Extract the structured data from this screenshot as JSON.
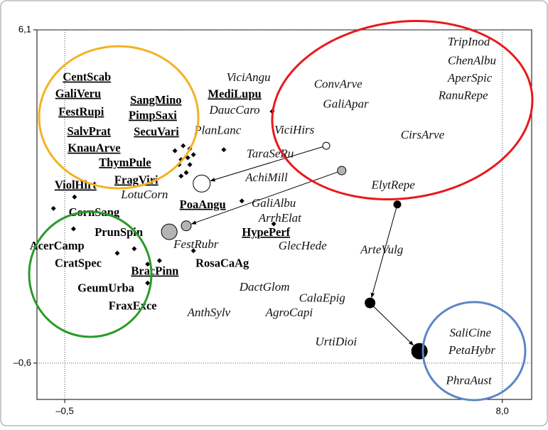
{
  "chart_data": {
    "type": "scatter",
    "xlim": [
      -1.04,
      8.57
    ],
    "ylim": [
      -1.33,
      6.1
    ],
    "xticks": [
      {
        "value": -0.5,
        "label": "–0,5"
      },
      {
        "value": 8.0,
        "label": "8,0"
      }
    ],
    "yticks": [
      {
        "value": -0.6,
        "label": "–0,6"
      },
      {
        "value": 6.1,
        "label": "6,1"
      }
    ],
    "point_color": "#000000",
    "points": {
      "x": [
        1.64,
        1.8,
        1.93,
        2.0,
        1.89,
        1.76,
        1.72,
        1.93,
        1.86,
        1.76,
        2.59,
        3.53,
        -0.31,
        -0.72,
        -0.33,
        0.85,
        0.52,
        1.11,
        1.34,
        1.11,
        2.0,
        2.94,
        3.56
      ],
      "y": [
        3.67,
        3.77,
        3.71,
        3.59,
        3.53,
        3.49,
        3.39,
        3.39,
        3.23,
        3.16,
        3.69,
        4.46,
        2.74,
        2.51,
        2.1,
        1.7,
        1.61,
        1.39,
        1.46,
        1.01,
        1.66,
        2.66,
        2.2
      ]
    },
    "sites": {
      "x": [
        2.16,
        4.58,
        4.88,
        1.86,
        1.53,
        5.96,
        5.43,
        6.39
      ],
      "y": [
        3.01,
        3.77,
        3.27,
        2.16,
        2.04,
        2.59,
        0.61,
        -0.36
      ],
      "sizes": [
        12,
        5,
        6,
        7,
        11,
        5,
        7,
        11
      ],
      "colors": [
        "#ffffff",
        "#ffffff",
        "#b4b4b4",
        "#b4b4b4",
        "#b4b4b4",
        "#000000",
        "#000000",
        "#000000"
      ]
    },
    "species": [
      {
        "name": "TripInod",
        "x": 7.35,
        "y": 5.84,
        "bold": false
      },
      {
        "name": "ChenAlbu",
        "x": 7.41,
        "y": 5.46,
        "bold": false
      },
      {
        "name": "AperSpic",
        "x": 7.37,
        "y": 5.11,
        "bold": false
      },
      {
        "name": "RanuRepe",
        "x": 7.24,
        "y": 4.76,
        "bold": false
      },
      {
        "name": "CirsArve",
        "x": 6.45,
        "y": 3.97,
        "bold": false
      },
      {
        "name": "ViciAngu",
        "x": 3.07,
        "y": 5.13,
        "bold": false
      },
      {
        "name": "ConvArve",
        "x": 4.81,
        "y": 4.99,
        "bold": false
      },
      {
        "name": "GaliApar",
        "x": 4.96,
        "y": 4.59,
        "bold": false
      },
      {
        "name": "DaucCaro",
        "x": 2.8,
        "y": 4.47,
        "bold": false
      },
      {
        "name": "PlanLanc",
        "x": 2.47,
        "y": 4.06,
        "bold": false
      },
      {
        "name": "ViciHirs",
        "x": 3.96,
        "y": 4.07,
        "bold": false
      },
      {
        "name": "TaraSeRu",
        "x": 3.49,
        "y": 3.59,
        "bold": false
      },
      {
        "name": "AchiMill",
        "x": 3.42,
        "y": 3.11,
        "bold": false
      },
      {
        "name": "ElytRepe",
        "x": 5.88,
        "y": 2.96,
        "bold": false
      },
      {
        "name": "LotuCorn",
        "x": 1.05,
        "y": 2.77,
        "bold": false
      },
      {
        "name": "GaliAlbu",
        "x": 3.56,
        "y": 2.6,
        "bold": false
      },
      {
        "name": "ArrhElat",
        "x": 3.68,
        "y": 2.3,
        "bold": false
      },
      {
        "name": "FestRubr",
        "x": 2.05,
        "y": 1.77,
        "bold": false
      },
      {
        "name": "GlecHede",
        "x": 4.12,
        "y": 1.74,
        "bold": false
      },
      {
        "name": "ArteVulg",
        "x": 5.66,
        "y": 1.66,
        "bold": false
      },
      {
        "name": "DactGlom",
        "x": 3.38,
        "y": 0.91,
        "bold": false
      },
      {
        "name": "CalaEpig",
        "x": 4.5,
        "y": 0.69,
        "bold": false
      },
      {
        "name": "AgroCapi",
        "x": 3.86,
        "y": 0.4,
        "bold": false
      },
      {
        "name": "AnthSylv",
        "x": 2.3,
        "y": 0.4,
        "bold": false
      },
      {
        "name": "UrtiDioi",
        "x": 4.77,
        "y": -0.19,
        "bold": false
      },
      {
        "name": "SaliCine",
        "x": 7.38,
        "y": -0.01,
        "bold": false
      },
      {
        "name": "PetaHybr",
        "x": 7.41,
        "y": -0.36,
        "bold": false
      },
      {
        "name": "PhraAust",
        "x": 7.35,
        "y": -0.97,
        "bold": false
      },
      {
        "name": "CentScab",
        "x": -0.07,
        "y": 5.13,
        "bold": true,
        "underline": true
      },
      {
        "name": "GaliVeru",
        "x": -0.24,
        "y": 4.8,
        "bold": true,
        "underline": true
      },
      {
        "name": "FestRupi",
        "x": -0.18,
        "y": 4.43,
        "bold": true,
        "underline": true
      },
      {
        "name": "SangMino",
        "x": 1.27,
        "y": 4.67,
        "bold": true,
        "underline": true
      },
      {
        "name": "PimpSaxi",
        "x": 1.21,
        "y": 4.36,
        "bold": true,
        "underline": true
      },
      {
        "name": "SalvPrat",
        "x": -0.03,
        "y": 4.04,
        "bold": true,
        "underline": true
      },
      {
        "name": "SecuVari",
        "x": 1.28,
        "y": 4.03,
        "bold": true,
        "underline": true
      },
      {
        "name": "KnauArve",
        "x": 0.07,
        "y": 3.7,
        "bold": true,
        "underline": true
      },
      {
        "name": "ThymPule",
        "x": 0.67,
        "y": 3.41,
        "bold": true,
        "underline": true
      },
      {
        "name": "FragViri",
        "x": 0.89,
        "y": 3.06,
        "bold": true,
        "underline": true
      },
      {
        "name": "ViolHirt",
        "x": -0.29,
        "y": 2.96,
        "bold": true,
        "underline": true
      },
      {
        "name": "MediLupu",
        "x": 2.8,
        "y": 4.79,
        "bold": true,
        "underline": true
      },
      {
        "name": "PoaAngu",
        "x": 2.18,
        "y": 2.57,
        "bold": true,
        "underline": true
      },
      {
        "name": "HypePerf",
        "x": 3.41,
        "y": 2.01,
        "bold": true,
        "underline": true
      },
      {
        "name": "BracPinn",
        "x": 1.25,
        "y": 1.23,
        "bold": true,
        "underline": true
      },
      {
        "name": "CornSang",
        "x": 0.07,
        "y": 2.41,
        "bold": true,
        "underline": false
      },
      {
        "name": "PrunSpin",
        "x": 0.55,
        "y": 2.01,
        "bold": true,
        "underline": false
      },
      {
        "name": "AcerCamp",
        "x": -0.65,
        "y": 1.74,
        "bold": true,
        "underline": false
      },
      {
        "name": "CratSpec",
        "x": -0.24,
        "y": 1.39,
        "bold": true,
        "underline": false
      },
      {
        "name": "RosaCaAg",
        "x": 2.56,
        "y": 1.39,
        "bold": true,
        "underline": false
      },
      {
        "name": "GeumUrba",
        "x": 0.3,
        "y": 0.89,
        "bold": true,
        "underline": false
      },
      {
        "name": "FraxExce",
        "x": 0.82,
        "y": 0.53,
        "bold": true,
        "underline": false
      }
    ]
  }
}
